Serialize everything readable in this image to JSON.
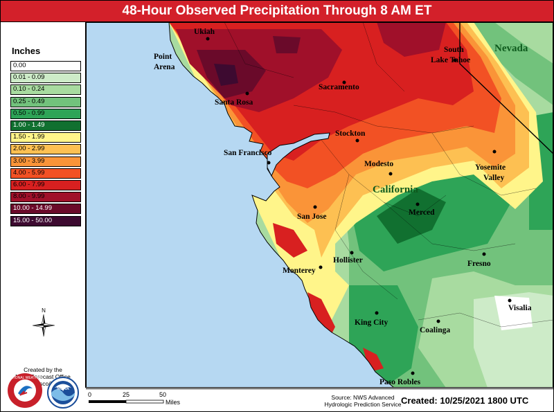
{
  "title": "48-Hour Observed Precipitation Through 8 AM ET",
  "legend": {
    "title": "Inches",
    "items": [
      {
        "label": "0.00",
        "color": "#ffffff",
        "light_text": false
      },
      {
        "label": "0.01 - 0.09",
        "color": "#cdebc8",
        "light_text": false
      },
      {
        "label": "0.10 - 0.24",
        "color": "#a8dba0",
        "light_text": false
      },
      {
        "label": "0.25 - 0.49",
        "color": "#72c27c",
        "light_text": false
      },
      {
        "label": "0.50 - 0.99",
        "color": "#2ea457",
        "light_text": false
      },
      {
        "label": "1.00 - 1.49",
        "color": "#117030",
        "light_text": true
      },
      {
        "label": "1.50 - 1.99",
        "color": "#fff58a",
        "light_text": false
      },
      {
        "label": "2.00 - 2.99",
        "color": "#fdc052",
        "light_text": false
      },
      {
        "label": "3.00 - 3.99",
        "color": "#fa9438",
        "light_text": false
      },
      {
        "label": "4.00 - 5.99",
        "color": "#f25124",
        "light_text": false
      },
      {
        "label": "6.00 - 7.99",
        "color": "#d82020",
        "light_text": false
      },
      {
        "label": "8.00 - 9.99",
        "color": "#a0102a",
        "light_text": false
      },
      {
        "label": "10.00 - 14.99",
        "color": "#6a0a2a",
        "light_text": true
      },
      {
        "label": "15.00 - 50.00",
        "color": "#3d0a30",
        "light_text": true
      }
    ]
  },
  "compass": {
    "north_label": "N"
  },
  "office": {
    "line1": "Created by the",
    "line2": "NWS Forecast Office",
    "line3": "San Francisco/Monterey"
  },
  "scale_bar": {
    "label_0": "0",
    "label_25": "25",
    "label_50": "50",
    "units": "Miles"
  },
  "source": {
    "line1": "Source: NWS Advanced",
    "line2": "Hydrologic Prediction Service"
  },
  "created": "Created: 10/25/2021 1800 UTC",
  "states": {
    "california": "California",
    "nevada": "Nevada"
  },
  "cities": [
    {
      "name": "Ukiah"
    },
    {
      "name": "Point"
    },
    {
      "name": "Arena"
    },
    {
      "name": "Santa Rosa"
    },
    {
      "name": "Sacramento"
    },
    {
      "name": "South"
    },
    {
      "name": "Lake Tahoe"
    },
    {
      "name": "Stockton"
    },
    {
      "name": "San Francisco"
    },
    {
      "name": "Modesto"
    },
    {
      "name": "Yosemite"
    },
    {
      "name": "Valley"
    },
    {
      "name": "San Jose"
    },
    {
      "name": "Merced"
    },
    {
      "name": "Hollister"
    },
    {
      "name": "Monterey"
    },
    {
      "name": "Fresno"
    },
    {
      "name": "Visalia"
    },
    {
      "name": "King City"
    },
    {
      "name": "Coalinga"
    },
    {
      "name": "Paso Robles"
    }
  ],
  "colors": {
    "ocean": "#b6d8f2",
    "title_bar": "#d3202a",
    "california_label": "#0e5a1d",
    "nevada_label": "#0e5a1d"
  }
}
